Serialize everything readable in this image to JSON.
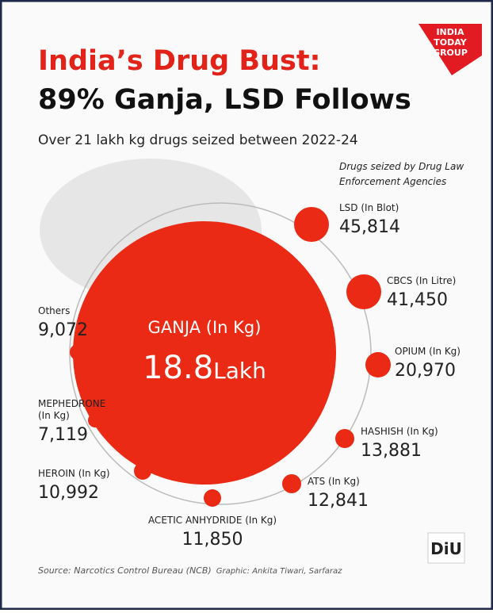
{
  "header": {
    "title_line1": "India’s Drug Bust:",
    "title_line2": "89% Ganja, LSD Follows",
    "subtitle": "Over 21 lakh kg drugs seized between 2022-24",
    "note": [
      "Drugs seized by Drug Law",
      "Enforcement Agencies"
    ]
  },
  "main": {
    "label": "GANJA (In Kg)",
    "value": "18.8",
    "unit": "Lakh"
  },
  "items": [
    {
      "label": [
        "LSD (In Blot)"
      ],
      "value": "45,814"
    },
    {
      "label": [
        "CBCS (In Litre)"
      ],
      "value": "41,450"
    },
    {
      "label": [
        "OPIUM (In Kg)"
      ],
      "value": "20,970"
    },
    {
      "label": [
        "HASHISH (In Kg)"
      ],
      "value": "13,881"
    },
    {
      "label": [
        "ATS (In Kg)"
      ],
      "value": "12,841"
    },
    {
      "label": [
        "ACETIC ANHYDRIDE (In Kg)"
      ],
      "value": "11,850"
    },
    {
      "label": [
        "HEROIN (In Kg)"
      ],
      "value": "10,992"
    },
    {
      "label": [
        "MEPHEDRONE",
        "(In Kg)"
      ],
      "value": "7,119"
    },
    {
      "label": [
        "Others"
      ],
      "value": "9,072"
    }
  ],
  "footer": {
    "source": "Source: Narcotics Control Bureau (NCB)",
    "graphic": "Graphic: Ankita Tiwari, Sarfaraz"
  },
  "logo": {
    "lines": [
      "INDIA",
      "TODAY",
      "GROUP"
    ]
  },
  "badge": "DiU"
}
